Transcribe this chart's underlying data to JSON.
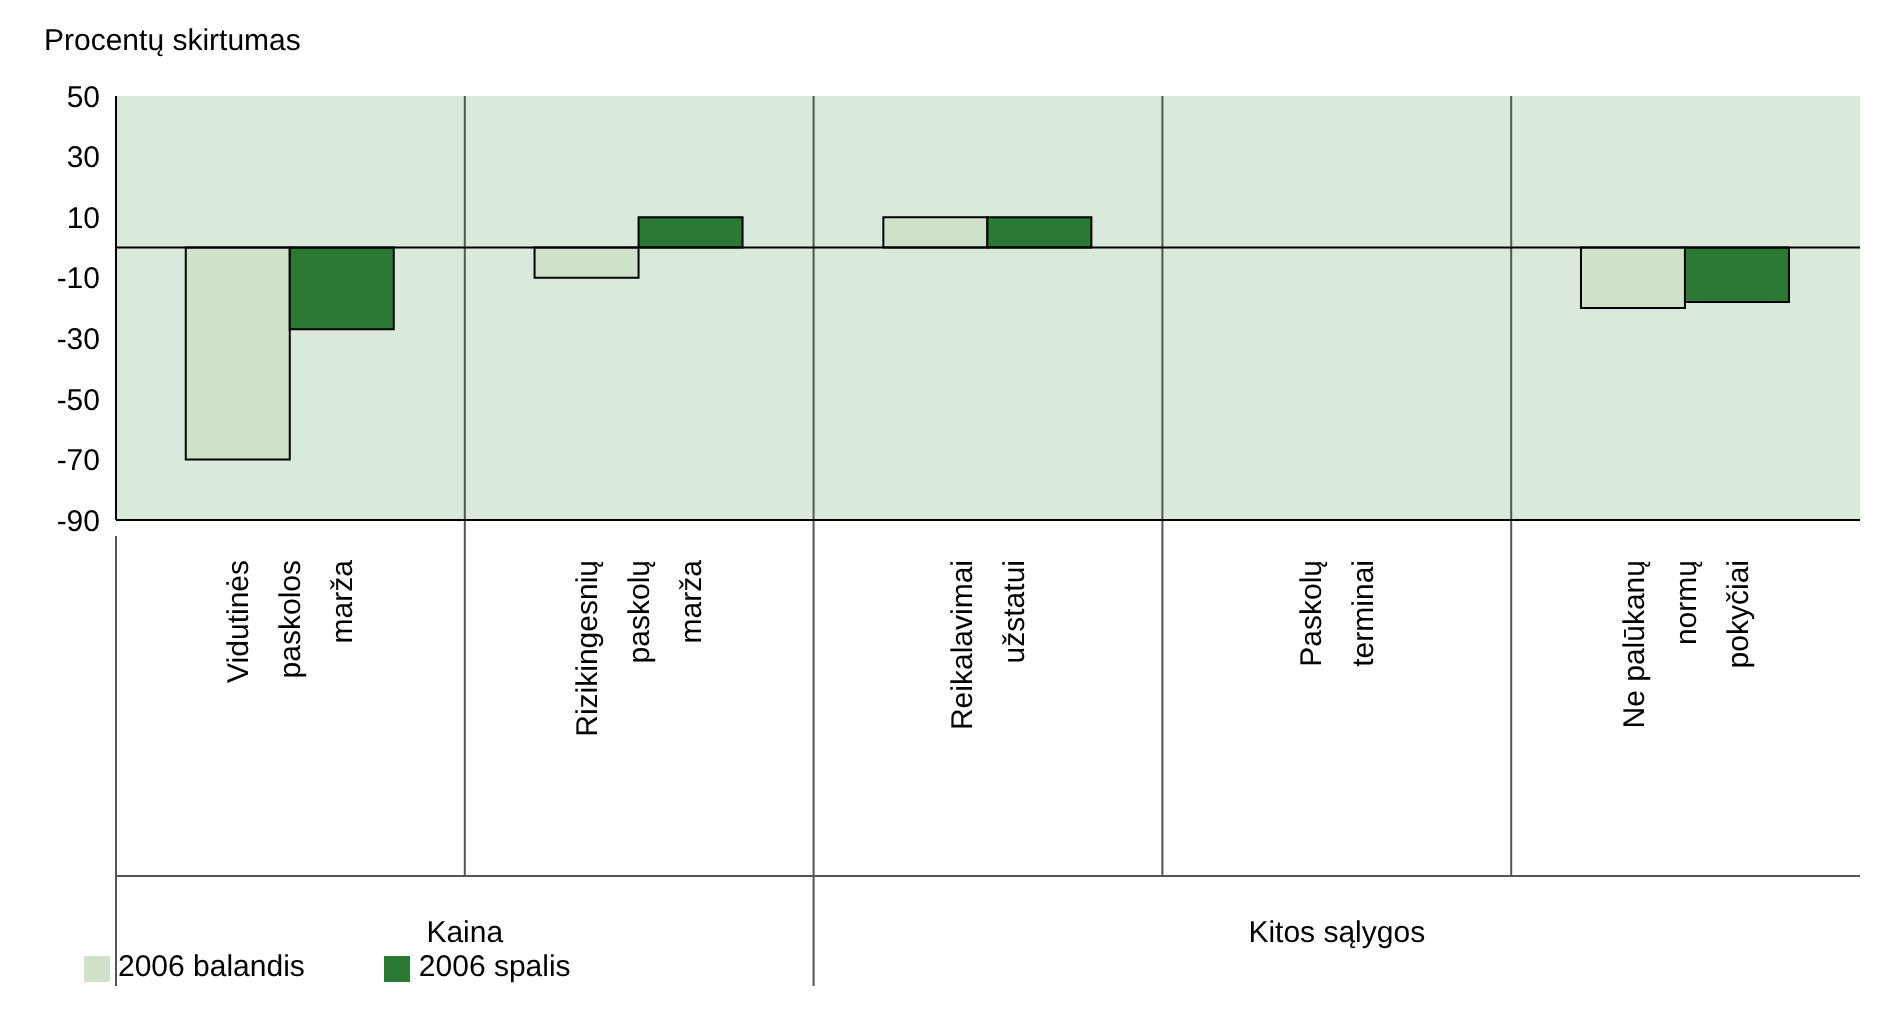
{
  "chart_data": {
    "type": "bar",
    "ylabel": "Procentų skirtumas",
    "categories": [
      "Vidutinės paskolos marža",
      "Rizikingesnių paskolų marža",
      "Reikalavimai užstatui",
      "Paskolų terminai",
      "Ne palūkanų normų pokyčiai"
    ],
    "series": [
      {
        "name": "2006 balandis",
        "color": "#cfe2c9",
        "values": [
          -70,
          -10,
          10,
          0,
          -20
        ]
      },
      {
        "name": "2006 spalis",
        "color": "#2a7a34",
        "values": [
          -27,
          10,
          10,
          0,
          -18
        ]
      }
    ],
    "ylim": [
      -90,
      50
    ],
    "yticks": [
      -90,
      -70,
      -50,
      -30,
      -10,
      10,
      30,
      50
    ],
    "annotations": [
      "Kaina",
      "Kitos sąlygos"
    ],
    "legend": "bottom left"
  }
}
